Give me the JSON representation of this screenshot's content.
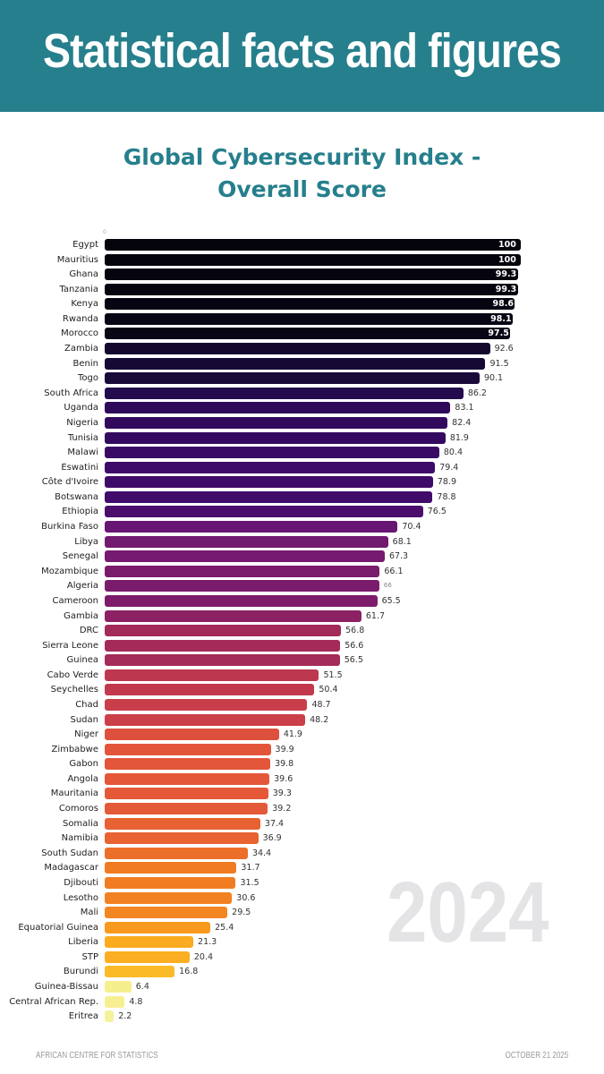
{
  "header": {
    "title": "Statistical facts and figures"
  },
  "chart_data": {
    "type": "bar",
    "orientation": "horizontal",
    "title": "Global Cybersecurity Index - Overall Score",
    "title_lines": [
      "Global Cybersecurity Index -",
      "Overall Score"
    ],
    "axis_tick": "0",
    "xlim": [
      0,
      100
    ],
    "categories": [
      "Egypt",
      "Mauritius",
      "Ghana",
      "Tanzania",
      "Kenya",
      "Rwanda",
      "Morocco",
      "Zambia",
      "Benin",
      "Togo",
      "South Africa",
      "Uganda",
      "Nigeria",
      "Tunisia",
      "Malawi",
      "Eswatini",
      "Côte d'Ivoire",
      "Botswana",
      "Ethiopia",
      "Burkina Faso",
      "Libya",
      "Senegal",
      "Mozambique",
      "Algeria",
      "Cameroon",
      "Gambia",
      "DRC",
      "Sierra Leone",
      "Guinea",
      "Cabo Verde",
      "Seychelles",
      "Chad",
      "Sudan",
      "Niger",
      "Zimbabwe",
      "Gabon",
      "Angola",
      "Mauritania",
      "Comoros",
      "Somalia",
      "Namibia",
      "South Sudan",
      "Madagascar",
      "Djibouti",
      "Lesotho",
      "Mali",
      "Equatorial Guinea",
      "Liberia",
      "STP",
      "Burundi",
      "Guinea-Bissau",
      "Central African Rep.",
      "Eritrea"
    ],
    "values": [
      100,
      100,
      99.3,
      99.3,
      98.6,
      98.1,
      97.5,
      92.6,
      91.5,
      90.1,
      86.2,
      83.1,
      82.4,
      81.9,
      80.4,
      79.4,
      78.9,
      78.8,
      76.5,
      70.4,
      68.1,
      67.3,
      66.1,
      66,
      65.5,
      61.7,
      56.8,
      56.6,
      56.5,
      51.5,
      50.4,
      48.7,
      48.2,
      41.9,
      39.9,
      39.8,
      39.6,
      39.3,
      39.2,
      37.4,
      36.9,
      34.4,
      31.7,
      31.5,
      30.6,
      29.5,
      25.4,
      21.3,
      20.4,
      16.8,
      6.4,
      4.8,
      2.2
    ],
    "color_scale": [
      {
        "value": 100,
        "color": "#05040c"
      },
      {
        "value": 95,
        "color": "#0c0820"
      },
      {
        "value": 88,
        "color": "#1e0b45"
      },
      {
        "value": 80,
        "color": "#3a0a68"
      },
      {
        "value": 70,
        "color": "#6a1674"
      },
      {
        "value": 60,
        "color": "#93245f"
      },
      {
        "value": 50,
        "color": "#c43a4c"
      },
      {
        "value": 40,
        "color": "#e3553a"
      },
      {
        "value": 32,
        "color": "#f07a22"
      },
      {
        "value": 22,
        "color": "#fba91e"
      },
      {
        "value": 15,
        "color": "#fbc02a"
      },
      {
        "value": 8,
        "color": "#f5ee88"
      },
      {
        "value": 0,
        "color": "#f7f3a2"
      }
    ]
  },
  "watermark_year": "2024",
  "footer": {
    "source": "AFRICAN CENTRE FOR STATISTICS",
    "date": "OCTOBER 21 2025"
  }
}
